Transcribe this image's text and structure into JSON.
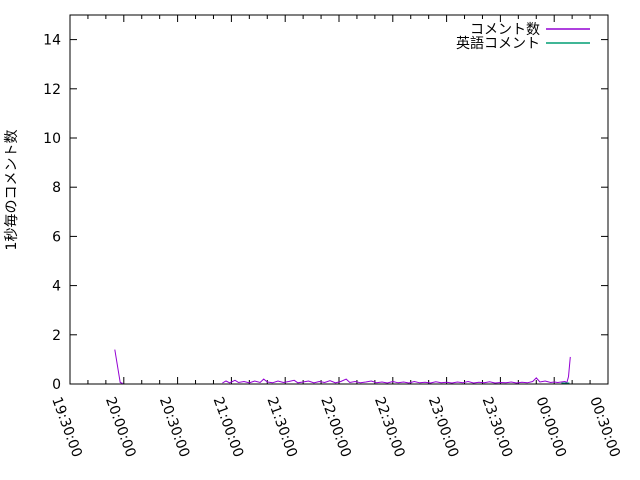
{
  "chart_data": {
    "type": "line",
    "title": "",
    "xlabel": "",
    "ylabel": "1秒毎のコメント数",
    "ylim": [
      0,
      15
    ],
    "y_ticks": [
      0,
      2,
      4,
      6,
      8,
      10,
      12,
      14
    ],
    "xlim": [
      "19:30:00",
      "00:30:00"
    ],
    "x_major_ticks": [
      "19:30:00",
      "20:00:00",
      "20:30:00",
      "21:00:00",
      "21:30:00",
      "22:00:00",
      "22:30:00",
      "23:00:00",
      "23:30:00",
      "00:00:00",
      "00:30:00"
    ],
    "x_minor_tick_minutes": 10,
    "xtick_rotation_deg": 70,
    "grid": false,
    "legend_position": "top-right-inside",
    "axis_color": "#000000",
    "background_color": "#ffffff",
    "series": [
      {
        "name": "コメント数",
        "color": "#9400d3",
        "segments": [
          [
            [
              "19:55:00",
              1.4
            ],
            [
              "19:58:00",
              0.06
            ],
            [
              "19:59:30",
              0.02
            ]
          ],
          [
            [
              "20:55:00",
              0.04
            ],
            [
              "20:57:00",
              0.12
            ],
            [
              "20:59:00",
              0.05
            ],
            [
              "21:00:00",
              0.08
            ],
            [
              "21:02:00",
              0.15
            ],
            [
              "21:04:00",
              0.06
            ],
            [
              "21:07:00",
              0.1
            ],
            [
              "21:10:00",
              0.05
            ],
            [
              "21:13:00",
              0.12
            ],
            [
              "21:16:00",
              0.06
            ],
            [
              "21:18:00",
              0.2
            ],
            [
              "21:20:00",
              0.08
            ],
            [
              "21:23:00",
              0.05
            ],
            [
              "21:26:00",
              0.12
            ],
            [
              "21:29:00",
              0.06
            ],
            [
              "21:32:00",
              0.1
            ],
            [
              "21:35:00",
              0.15
            ],
            [
              "21:37:00",
              0.05
            ],
            [
              "21:40:00",
              0.08
            ],
            [
              "21:43:00",
              0.12
            ],
            [
              "21:46:00",
              0.05
            ],
            [
              "21:49:00",
              0.1
            ],
            [
              "21:52:00",
              0.06
            ],
            [
              "21:55:00",
              0.14
            ],
            [
              "21:58:00",
              0.05
            ],
            [
              "22:01:00",
              0.1
            ],
            [
              "22:04:00",
              0.2
            ],
            [
              "22:06:00",
              0.06
            ],
            [
              "22:09:00",
              0.1
            ],
            [
              "22:12:00",
              0.05
            ],
            [
              "22:15:00",
              0.08
            ],
            [
              "22:18:00",
              0.12
            ],
            [
              "22:21:00",
              0.05
            ],
            [
              "22:24:00",
              0.08
            ],
            [
              "22:27:00",
              0.04
            ],
            [
              "22:30:00",
              0.1
            ],
            [
              "22:33:00",
              0.05
            ],
            [
              "22:36:00",
              0.08
            ],
            [
              "22:39:00",
              0.04
            ],
            [
              "22:42:00",
              0.1
            ],
            [
              "22:45:00",
              0.05
            ],
            [
              "22:48:00",
              0.07
            ],
            [
              "22:51:00",
              0.04
            ],
            [
              "22:54:00",
              0.09
            ],
            [
              "22:57:00",
              0.05
            ],
            [
              "23:00:00",
              0.07
            ],
            [
              "23:03:00",
              0.04
            ],
            [
              "23:06:00",
              0.08
            ],
            [
              "23:09:00",
              0.05
            ],
            [
              "23:12:00",
              0.1
            ],
            [
              "23:15:00",
              0.04
            ],
            [
              "23:18:00",
              0.07
            ],
            [
              "23:21:00",
              0.05
            ],
            [
              "23:24:00",
              0.09
            ],
            [
              "23:27:00",
              0.04
            ],
            [
              "23:30:00",
              0.06
            ],
            [
              "23:33:00",
              0.05
            ],
            [
              "23:36:00",
              0.08
            ],
            [
              "23:39:00",
              0.04
            ],
            [
              "23:42:00",
              0.07
            ],
            [
              "23:45:00",
              0.05
            ],
            [
              "23:48:00",
              0.1
            ],
            [
              "23:50:00",
              0.25
            ],
            [
              "23:52:00",
              0.08
            ],
            [
              "23:55:00",
              0.12
            ],
            [
              "23:58:00",
              0.06
            ],
            [
              "00:00:00",
              0.08
            ],
            [
              "00:02:00",
              0.06
            ],
            [
              "00:04:00",
              0.08
            ],
            [
              "00:06:00",
              0.1
            ],
            [
              "00:07:00",
              0.05
            ],
            [
              "00:08:00",
              0.3
            ],
            [
              "00:09:00",
              1.1
            ]
          ]
        ]
      },
      {
        "name": "英語コメント",
        "color": "#009e73",
        "segments": [
          [
            [
              "00:04:00",
              0.04
            ],
            [
              "00:08:30",
              0.04
            ]
          ]
        ]
      }
    ]
  },
  "legend": {
    "entries": [
      {
        "label": "コメント数"
      },
      {
        "label": "英語コメント"
      }
    ]
  }
}
